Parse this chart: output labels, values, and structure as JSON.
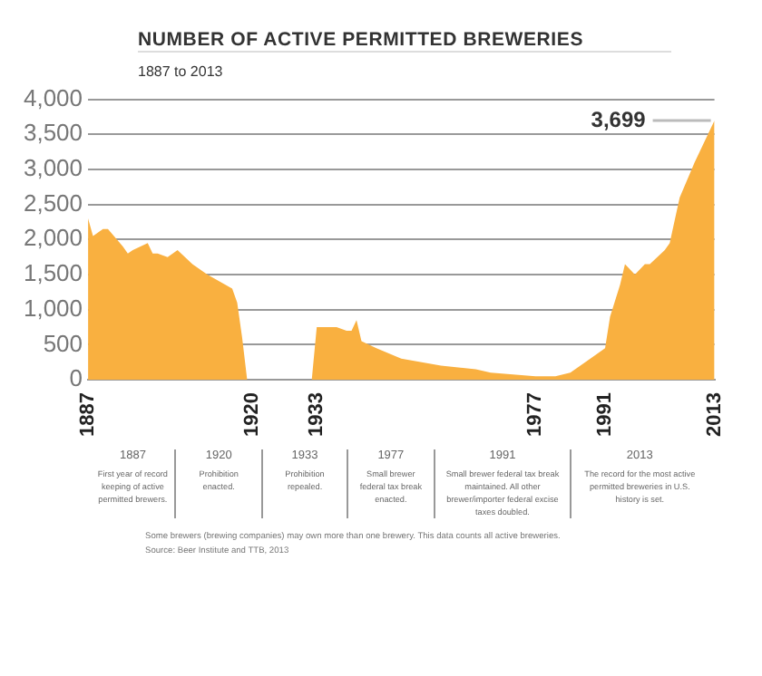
{
  "chart_data": {
    "type": "area",
    "title": "NUMBER OF ACTIVE PERMITTED BREWERIES",
    "subtitle": "1887 to 2013",
    "x": [
      1887,
      1888,
      1890,
      1891,
      1894,
      1895,
      1896,
      1899,
      1900,
      1901,
      1903,
      1905,
      1908,
      1911,
      1916,
      1917,
      1918,
      1919,
      1932,
      1933,
      1934,
      1935,
      1937,
      1939,
      1940,
      1941,
      1942,
      1945,
      1950,
      1958,
      1965,
      1968,
      1977,
      1981,
      1984,
      1987,
      1991,
      1992,
      1994,
      1995,
      1997,
      1999,
      2000,
      2003,
      2004,
      2006,
      2009,
      2013
    ],
    "series": [
      {
        "color": "#f9b040",
        "values": [
          2300,
          2050,
          2150,
          2150,
          1900,
          1800,
          1850,
          1950,
          1800,
          1800,
          1750,
          1850,
          1650,
          1500,
          1300,
          1100,
          600,
          0,
          0,
          750,
          750,
          750,
          750,
          700,
          700,
          850,
          550,
          450,
          300,
          200,
          150,
          100,
          50,
          50,
          100,
          250,
          450,
          900,
          1350,
          1650,
          1500,
          1650,
          1650,
          1850,
          1950,
          2600,
          3100,
          3699
        ]
      }
    ],
    "xlim": [
      1887,
      2013
    ],
    "xticks": [
      1887,
      1920,
      1933,
      1977,
      1991,
      2013
    ],
    "ylim": [
      0,
      4000
    ],
    "yticks": [
      {
        "value": 0,
        "label": "0"
      },
      {
        "value": 500,
        "label": "500"
      },
      {
        "value": 1000,
        "label": "1,000"
      },
      {
        "value": 1500,
        "label": "1,500"
      },
      {
        "value": 2000,
        "label": "2,000"
      },
      {
        "value": 2500,
        "label": "2,500"
      },
      {
        "value": 3000,
        "label": "3,000"
      },
      {
        "value": 3500,
        "label": "3,500"
      },
      {
        "value": 4000,
        "label": "4,000"
      }
    ],
    "grid": "y",
    "legend": false,
    "annotations": [
      {
        "text": "3,699",
        "x": 2013,
        "y": 3699
      },
      "1887",
      "First year of record keeping of active permitted brewers.",
      "1920",
      "Prohibition enacted.",
      "1933",
      "Prohibition repealed.",
      "1977",
      "Small brewer federal tax break enacted.",
      "1991",
      "Small brewer federal tax break maintained. All other brewer/importer federal excise taxes doubled.",
      "2013",
      "The record for the most active permitted breweries in U.S. history is set.",
      "Some brewers (brewing companies) may own more than one brewery. This data counts all active breweries.",
      "Source: Beer Institute and TTB, 2013"
    ]
  }
}
